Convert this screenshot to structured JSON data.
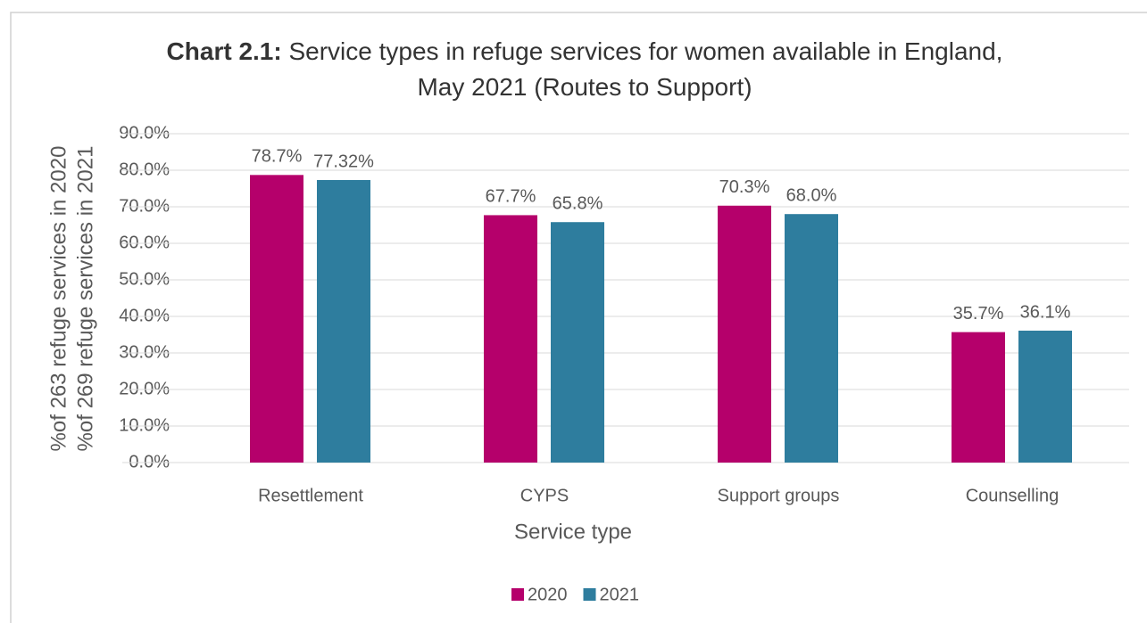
{
  "chart_data": {
    "type": "bar",
    "title_label": "Chart 2.1:",
    "title": "Service types in refuge services for women available in England, May 2021 (Routes to Support)",
    "ylabel": [
      "%of 263 refuge services in 2020",
      "%of 269 refuge services in 2021"
    ],
    "xlabel": "Service type",
    "categories": [
      "Resettlement",
      "CYPS",
      "Support groups",
      "Counselling"
    ],
    "series": [
      {
        "name": "2020",
        "color": "#b5006b",
        "values": [
          78.7,
          67.7,
          70.3,
          35.7
        ],
        "value_labels": [
          "78.7%",
          "67.7%",
          "70.3%",
          "35.7%"
        ]
      },
      {
        "name": "2021",
        "color": "#2e7d9e",
        "values": [
          77.32,
          65.8,
          68.0,
          36.1
        ],
        "value_labels": [
          "77.32%",
          "65.8%",
          "68.0%",
          "36.1%"
        ]
      }
    ],
    "ylim": [
      0,
      90
    ],
    "yticks": [
      {
        "value": 0,
        "label": "0.0%"
      },
      {
        "value": 10,
        "label": "10.0%"
      },
      {
        "value": 20,
        "label": "20.0%"
      },
      {
        "value": 30,
        "label": "30.0%"
      },
      {
        "value": 40,
        "label": "40.0%"
      },
      {
        "value": 50,
        "label": "50.0%"
      },
      {
        "value": 60,
        "label": "60.0%"
      },
      {
        "value": 70,
        "label": "70.0%"
      },
      {
        "value": 80,
        "label": "80.0%"
      },
      {
        "value": 90,
        "label": "90.0%"
      }
    ],
    "grid": true,
    "legend": "bottom"
  }
}
